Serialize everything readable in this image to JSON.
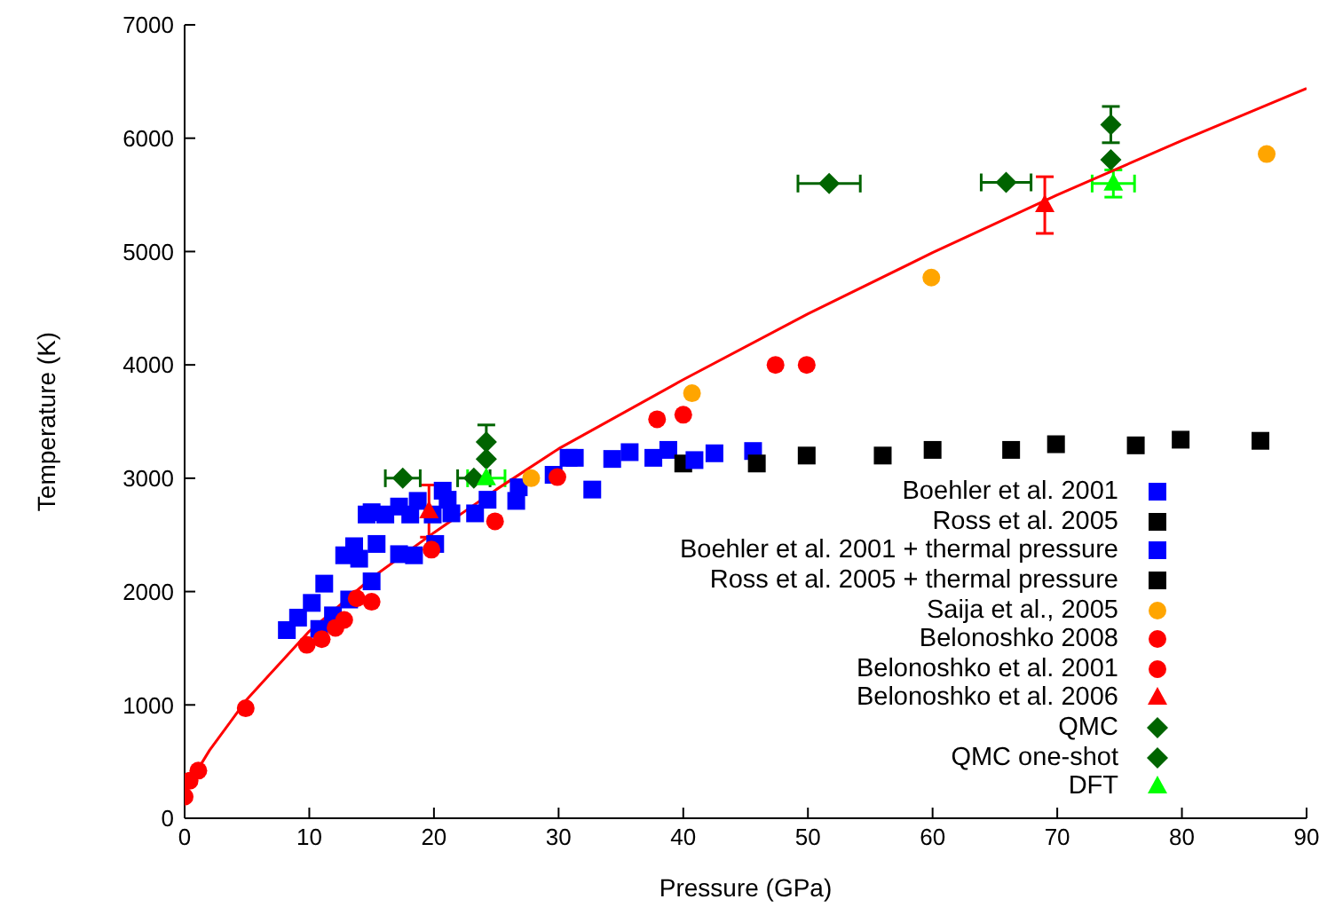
{
  "chart_data": {
    "type": "scatter",
    "xlabel": "Pressure (GPa)",
    "ylabel": "Temperature (K)",
    "xlim": [
      0,
      90
    ],
    "xticks": [
      0,
      10,
      20,
      30,
      40,
      50,
      60,
      70,
      80,
      90
    ],
    "ylim": [
      0,
      7000
    ],
    "yticks": [
      0,
      1000,
      2000,
      3000,
      4000,
      5000,
      6000,
      7000
    ],
    "legend": "bottom right",
    "series": [
      {
        "type": "line",
        "color": "#ff0000",
        "marker": "none",
        "line_style": "solid",
        "x": [
          0,
          1,
          2,
          5,
          10,
          15,
          20,
          25,
          30,
          40,
          50,
          60,
          70,
          80,
          90
        ],
        "values": [
          200,
          420,
          600,
          1050,
          1650,
          2120,
          2520,
          2900,
          3260,
          3870,
          4450,
          4990,
          5500,
          5980,
          6440
        ]
      },
      {
        "name": "Boehler et al. 2001",
        "color": "#0000ff",
        "marker": "square",
        "x": [
          8.2,
          9.1,
          10.2,
          11.2,
          12.8,
          13.6,
          14.0,
          15.4,
          14.6,
          15.0,
          16.1,
          17.2,
          18.1,
          18.7,
          20.7,
          21.1,
          30.8,
          31.3,
          34.3,
          35.7,
          38.8
        ],
        "values": [
          1660,
          1770,
          1900,
          2070,
          2320,
          2400,
          2290,
          2420,
          2680,
          2700,
          2680,
          2750,
          2680,
          2800,
          2890,
          2810,
          3180,
          3180,
          3170,
          3230,
          3250
        ]
      },
      {
        "name": "Ross et al. 2005",
        "color": "#000000",
        "marker": "square",
        "x": [
          40.0,
          49.9,
          60.0,
          69.9,
          79.9
        ],
        "values": [
          3130,
          3200,
          3250,
          3300,
          3340
        ]
      },
      {
        "name": "Boehler et al. 2001 + thermal pressure",
        "color": "#0000ff",
        "marker": "square",
        "x": [
          10.8,
          11.9,
          13.2,
          15.0,
          17.2,
          18.4,
          20.1,
          19.9,
          21.4,
          23.3,
          24.3,
          26.6,
          26.8,
          29.6,
          32.7,
          37.6,
          40.9,
          42.5,
          45.6
        ],
        "values": [
          1670,
          1790,
          1930,
          2090,
          2330,
          2320,
          2420,
          2680,
          2690,
          2690,
          2810,
          2800,
          2920,
          3030,
          2900,
          3180,
          3160,
          3220,
          3240
        ]
      },
      {
        "name": "Ross et al. 2005 + thermal pressure",
        "color": "#000000",
        "marker": "square",
        "x": [
          45.9,
          56.0,
          66.3,
          76.3,
          86.3
        ],
        "values": [
          3130,
          3200,
          3250,
          3290,
          3330
        ]
      },
      {
        "name": "Saija et al., 2005",
        "color": "#ffa500",
        "marker": "circle",
        "x": [
          27.8,
          40.7,
          59.9,
          86.8
        ],
        "values": [
          3000,
          3750,
          4770,
          5860
        ]
      },
      {
        "name": "Belonoshko 2008",
        "color": "#ff0000",
        "marker": "circle",
        "x": [
          37.9,
          47.4
        ],
        "values": [
          3520,
          4000
        ]
      },
      {
        "name": "Belonoshko et al. 2001",
        "color": "#ff0000",
        "marker": "circle",
        "x": [
          0,
          0.4,
          1.1,
          4.9,
          9.8,
          11.0,
          12.1,
          12.8,
          13.8,
          15.0,
          19.8,
          24.9,
          29.9,
          40.0,
          49.9
        ],
        "values": [
          190,
          330,
          420,
          970,
          1530,
          1580,
          1680,
          1750,
          1940,
          1910,
          2370,
          2620,
          3010,
          3560,
          4000
        ]
      },
      {
        "name": "Belonoshko et al. 2006",
        "color": "#ff0000",
        "marker": "triangle",
        "x": [
          19.6,
          69.0
        ],
        "values": [
          2710,
          5410
        ],
        "errors": [
          230,
          250
        ]
      },
      {
        "name": "QMC",
        "color": "#006400",
        "marker": "diamond",
        "x": [
          23.2,
          24.2,
          65.9,
          74.3
        ],
        "values": [
          3000,
          3170,
          5610,
          5810
        ],
        "xerrors": [
          1.3,
          null,
          2.0,
          null
        ],
        "errors": [
          null,
          null,
          null,
          null
        ]
      },
      {
        "name": "QMC one-shot",
        "color": "#006400",
        "marker": "diamond",
        "x": [
          17.5,
          24.2,
          51.7,
          74.3
        ],
        "values": [
          3000,
          3320,
          5600,
          6120
        ],
        "xerrors": [
          1.4,
          null,
          2.5,
          null
        ],
        "errors": [
          null,
          150,
          null,
          160
        ]
      },
      {
        "name": "DFT",
        "color": "#00ff00",
        "marker": "triangle",
        "x": [
          24.2,
          74.5
        ],
        "values": [
          3000,
          5600
        ],
        "xerrors": [
          1.5,
          1.7
        ],
        "errors": [
          null,
          120
        ]
      }
    ]
  }
}
